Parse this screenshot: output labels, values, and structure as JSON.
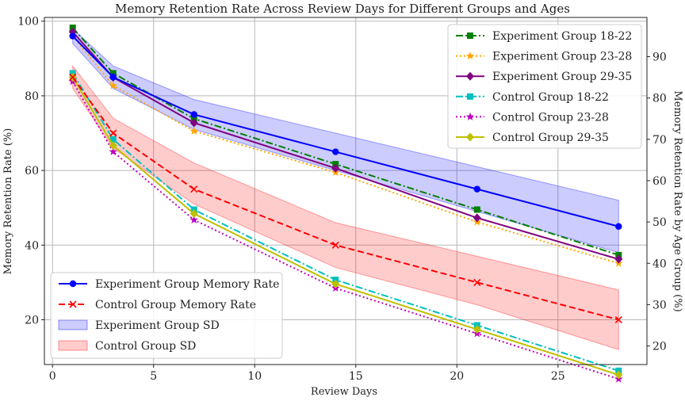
{
  "chart_data": {
    "type": "line",
    "title": "Memory Retention Rate Across Review Days for Different Groups and Ages",
    "xlabel": "Review Days",
    "ylabel": "Memory Retention Rate (%)",
    "ylabel_right": "Memory Retention Rate by Age Group (%)",
    "xlim": [
      -0.4,
      29.4
    ],
    "ylim": [
      8,
      101
    ],
    "ylim_right": [
      15.5,
      99.5
    ],
    "x_ticks": [
      0,
      5,
      10,
      15,
      20,
      25
    ],
    "y_ticks": [
      20,
      40,
      60,
      80,
      100
    ],
    "y_ticks_right": [
      20,
      30,
      40,
      50,
      60,
      70,
      80,
      90
    ],
    "grid": true,
    "x": [
      1,
      3,
      7,
      14,
      21,
      28
    ],
    "left_axis": {
      "series": [
        {
          "name": "Experiment Group Memory Rate",
          "values": [
            96,
            85,
            75,
            65,
            55,
            45
          ],
          "color": "#0000ff",
          "style": "solid",
          "marker": "circle"
        },
        {
          "name": "Control Group Memory Rate",
          "values": [
            85,
            70,
            55,
            40,
            30,
            20
          ],
          "color": "#ff0000",
          "style": "dashed",
          "marker": "x"
        }
      ],
      "bands": [
        {
          "name": "Experiment Group SD",
          "lower": [
            94,
            82,
            71,
            60,
            49,
            38
          ],
          "upper": [
            98,
            88,
            79,
            70,
            61,
            52
          ],
          "color": "#0000ff",
          "opacity": 0.2
        },
        {
          "name": "Control Group SD",
          "lower": [
            82,
            66,
            51,
            34,
            24,
            12
          ],
          "upper": [
            88,
            74,
            62,
            46,
            37,
            28
          ],
          "color": "#ff0000",
          "opacity": 0.2
        }
      ],
      "legend_position": "bottom-left"
    },
    "right_axis": {
      "series": [
        {
          "name": "Experiment Group 18-22",
          "values": [
            97,
            86,
            75,
            64,
            53,
            42
          ],
          "color": "#008000",
          "style": "dashdot",
          "marker": "square"
        },
        {
          "name": "Experiment Group 23-28",
          "values": [
            95,
            83,
            72,
            62,
            50,
            40
          ],
          "color": "#ffa500",
          "style": "dotted",
          "marker": "star"
        },
        {
          "name": "Experiment Group 29-35",
          "values": [
            96,
            85,
            74,
            63,
            51,
            41
          ],
          "color": "#800080",
          "style": "solid",
          "marker": "diamond"
        },
        {
          "name": "Control Group 18-22",
          "values": [
            86,
            70,
            53,
            36,
            25,
            14
          ],
          "color": "#00bfbf",
          "style": "dashdot",
          "marker": "square"
        },
        {
          "name": "Control Group 23-28",
          "values": [
            84,
            67,
            50.5,
            34,
            23,
            12
          ],
          "color": "#bf00bf",
          "style": "dotted",
          "marker": "star"
        },
        {
          "name": "Control Group 29-35",
          "values": [
            85,
            68.5,
            52,
            35,
            24,
            13
          ],
          "color": "#bfbf00",
          "style": "solid",
          "marker": "diamond"
        }
      ],
      "legend_position": "top-right"
    }
  }
}
